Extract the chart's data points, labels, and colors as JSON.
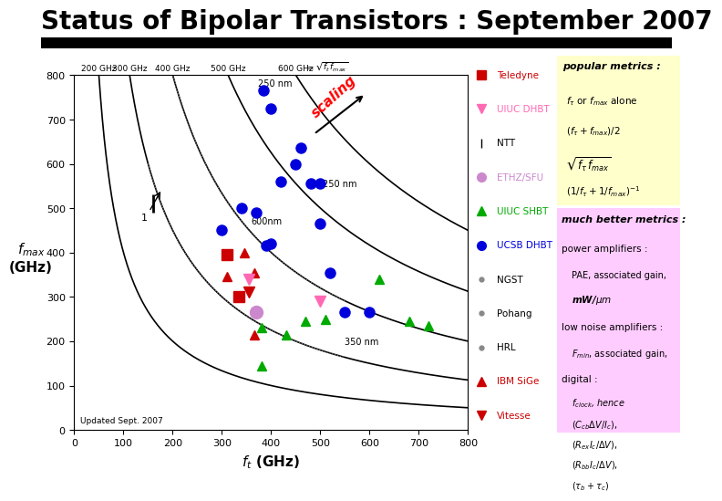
{
  "title": "Status of Bipolar Transistors : September 2007",
  "title_fontsize": 20,
  "title_fontweight": "bold",
  "xlim": [
    0,
    800
  ],
  "ylim": [
    0,
    800
  ],
  "background_color": "#ffffff",
  "contour_levels": [
    200,
    300,
    400,
    500,
    600
  ],
  "data_points": {
    "UCSB DHBT": {
      "color": "#0000dd",
      "marker": "o",
      "points": [
        [
          300,
          450
        ],
        [
          340,
          500
        ],
        [
          370,
          490
        ],
        [
          390,
          415
        ],
        [
          400,
          420
        ],
        [
          420,
          560
        ],
        [
          450,
          600
        ],
        [
          460,
          635
        ],
        [
          480,
          555
        ],
        [
          500,
          555
        ],
        [
          500,
          465
        ],
        [
          520,
          355
        ],
        [
          550,
          265
        ],
        [
          600,
          265
        ],
        [
          385,
          765
        ],
        [
          400,
          725
        ]
      ]
    },
    "UIUC SHBT": {
      "color": "#00aa00",
      "marker": "^",
      "points": [
        [
          380,
          230
        ],
        [
          430,
          215
        ],
        [
          470,
          245
        ],
        [
          510,
          250
        ],
        [
          620,
          340
        ],
        [
          680,
          245
        ],
        [
          720,
          235
        ],
        [
          380,
          145
        ]
      ]
    },
    "Teledyne": {
      "color": "#cc0000",
      "marker": "s",
      "points": [
        [
          310,
          395
        ],
        [
          335,
          300
        ]
      ]
    },
    "IBM SiGe": {
      "color": "#cc0000",
      "marker": "^",
      "points": [
        [
          310,
          345
        ],
        [
          345,
          400
        ],
        [
          365,
          215
        ],
        [
          365,
          355
        ]
      ]
    },
    "Vitesse": {
      "color": "#cc0000",
      "marker": "v",
      "points": [
        [
          355,
          310
        ]
      ]
    },
    "UIUC DHBT": {
      "color": "#ff69b4",
      "marker": "v",
      "points": [
        [
          355,
          340
        ],
        [
          500,
          290
        ]
      ]
    },
    "ETHZ/SFU": {
      "color": "#cc88cc",
      "marker": "o",
      "points": [
        [
          370,
          265
        ]
      ]
    }
  },
  "legend_items": [
    {
      "label": "Teledyne",
      "color": "#cc0000",
      "marker": "s",
      "label_color": "#cc0000"
    },
    {
      "label": "UIUC DHBT",
      "color": "#ff69b4",
      "marker": "v",
      "label_color": "#ff69b4"
    },
    {
      "label": "NTT",
      "color": "#000000",
      "marker": "|",
      "label_color": "#000000"
    },
    {
      "label": "ETHZ/SFU",
      "color": "#cc88cc",
      "marker": "o",
      "label_color": "#cc88cc"
    },
    {
      "label": "UIUC SHBT",
      "color": "#00aa00",
      "marker": "^",
      "label_color": "#00aa00"
    },
    {
      "label": "UCSB DHBT",
      "color": "#0000dd",
      "marker": "o",
      "label_color": "#0000dd"
    },
    {
      "label": "NGST",
      "color": "#888888",
      "marker": ".",
      "label_color": "#000000"
    },
    {
      "label": "Pohang",
      "color": "#888888",
      "marker": ".",
      "label_color": "#000000"
    },
    {
      "label": "HRL",
      "color": "#888888",
      "marker": ".",
      "label_color": "#000000"
    },
    {
      "label": "IBM SiGe",
      "color": "#cc0000",
      "marker": "^",
      "label_color": "#cc0000"
    },
    {
      "label": "Vitesse",
      "color": "#cc0000",
      "marker": "v",
      "label_color": "#cc0000"
    }
  ],
  "right_panel_yellow_bg": "#ffffcc",
  "right_panel_pink_bg": "#ffccff"
}
